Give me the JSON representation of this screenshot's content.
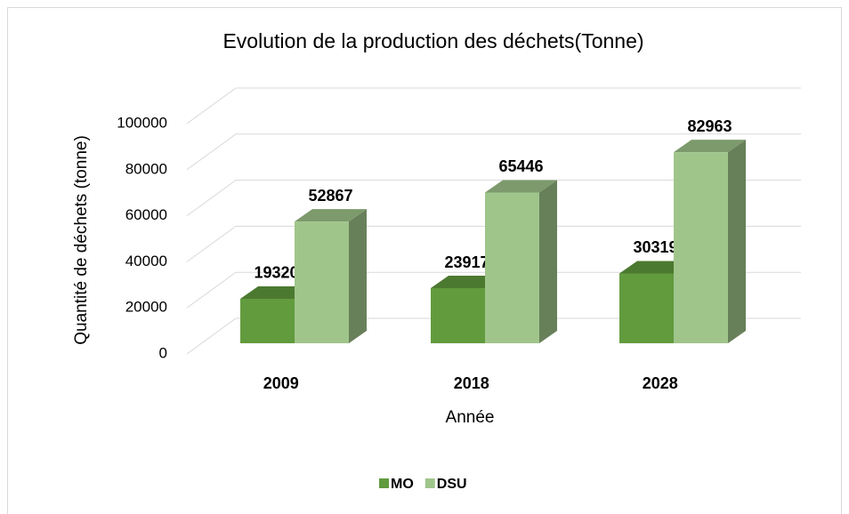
{
  "chart_data": {
    "type": "bar3d",
    "title": "Evolution de la production des déchets(Tonne)",
    "x_label": "Année",
    "y_label": "Quantité de déchets (tonne)",
    "categories": [
      "2009",
      "2018",
      "2028"
    ],
    "series": [
      {
        "name": "MO",
        "color": "#629b3e",
        "values": [
          19320,
          23917,
          30319
        ]
      },
      {
        "name": "DSU",
        "color": "#a0c58b",
        "values": [
          52867,
          65446,
          82963
        ]
      }
    ],
    "ylim": [
      0,
      100000
    ],
    "yticks": [
      0,
      20000,
      40000,
      60000,
      80000,
      100000
    ],
    "grid": true,
    "legend": "bottom"
  }
}
